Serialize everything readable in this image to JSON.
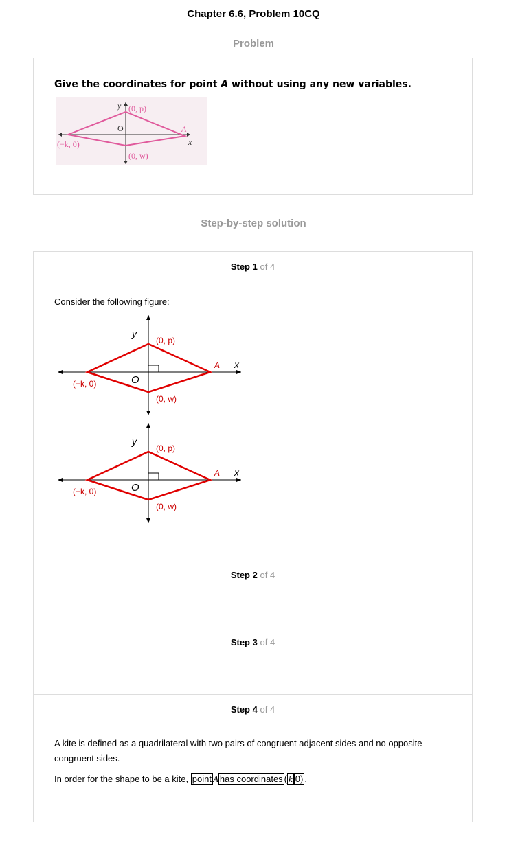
{
  "title": "Chapter 6.6, Problem 10CQ",
  "problem_label": "Problem",
  "problem": {
    "prefix": "Give the coordinates for point ",
    "var": "A",
    "suffix": " without using any new variables.",
    "figure": {
      "labels": {
        "y": "y",
        "top": "(0, p)",
        "origin": "O",
        "a": "A",
        "x": "x",
        "left": "(−k, 0)",
        "bottom": "(0, w)"
      },
      "colors": {
        "kite": "#e05a9c",
        "axis": "#333333",
        "label": "#e05a9c",
        "bg": "#f6e4ec"
      }
    }
  },
  "solution_label": "Step-by-step solution",
  "steps": [
    {
      "num": "1",
      "of": "of 4",
      "text": "Consider the following figure:"
    },
    {
      "num": "2",
      "of": "of 4"
    },
    {
      "num": "3",
      "of": "of 4"
    },
    {
      "num": "4",
      "of": "of 4",
      "para1": "A kite is defined as a quadrilateral with two pairs of congruent adjacent sides and no opposite congruent sides.",
      "para2_prefix": "In order for the shape to be a kite, ",
      "point_word": "point",
      "point_var": "A",
      "has_coords": "has coordinates",
      "open_paren": "(",
      "k": "k",
      "zero": "0)",
      "period": "."
    }
  ],
  "step_fig": {
    "labels": {
      "y": "y",
      "top": "(0, p)",
      "origin": "O",
      "a": "A",
      "x": "x",
      "left": "(−k, 0)",
      "bottom": "(0, w)"
    },
    "colors": {
      "kite": "#e00000",
      "axis": "#000000",
      "label": "#cc0000"
    }
  }
}
